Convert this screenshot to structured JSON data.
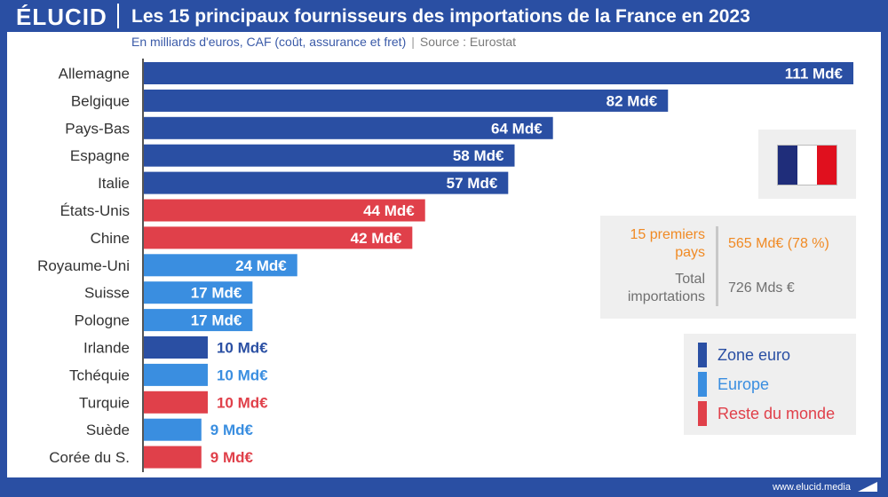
{
  "header": {
    "brand": "ÉLUCID",
    "title": "Les 15 principaux fournisseurs des importations de la France en 2023",
    "subtitle_main": "En milliards d'euros, CAF (coût, assurance et fret)",
    "subtitle_sep": "|",
    "subtitle_source": "Source : Eurostat"
  },
  "colors": {
    "zone_euro": "#2a4fa3",
    "europe": "#3a8ee0",
    "reste_du_monde": "#e0404a",
    "flag_blue": "#1f2d7a",
    "flag_white": "#ffffff",
    "flag_red": "#e0101e"
  },
  "chart_data": {
    "type": "bar",
    "orientation": "horizontal",
    "categories": [
      "Allemagne",
      "Belgique",
      "Pays-Bas",
      "Espagne",
      "Italie",
      "États-Unis",
      "Chine",
      "Royaume-Uni",
      "Suisse",
      "Pologne",
      "Irlande",
      "Tchéquie",
      "Turquie",
      "Suède",
      "Corée du S."
    ],
    "values": [
      111,
      82,
      64,
      58,
      57,
      44,
      42,
      24,
      17,
      17,
      10,
      10,
      10,
      9,
      9
    ],
    "value_labels": [
      "111 Md€",
      "82 Md€",
      "64 Md€",
      "58 Md€",
      "57 Md€",
      "44 Md€",
      "42 Md€",
      "24 Md€",
      "17 Md€",
      "17 Md€",
      "10 Md€",
      "10 Md€",
      "10 Md€",
      "9 Md€",
      "9 Md€"
    ],
    "groups": [
      "zone_euro",
      "zone_euro",
      "zone_euro",
      "zone_euro",
      "zone_euro",
      "reste_du_monde",
      "reste_du_monde",
      "europe",
      "europe",
      "europe",
      "zone_euro",
      "europe",
      "reste_du_monde",
      "europe",
      "reste_du_monde"
    ],
    "xlim": [
      0,
      111
    ],
    "grid": false,
    "legend_position": "bottom-right"
  },
  "stats": {
    "top15_label": "15 premiers pays",
    "top15_value": "565 Md€ (78 %)",
    "total_label": "Total importations",
    "total_value": "726 Mds €"
  },
  "legend": [
    {
      "key": "zone_euro",
      "label": "Zone euro"
    },
    {
      "key": "europe",
      "label": "Europe"
    },
    {
      "key": "reste_du_monde",
      "label": "Reste du monde"
    }
  ],
  "footer": {
    "url": "www.elucid.media"
  }
}
